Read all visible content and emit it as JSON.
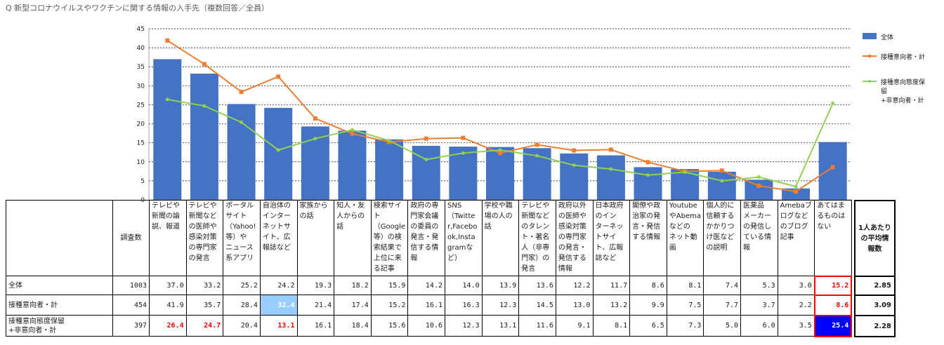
{
  "question": "Q 新型コロナウイルスやワクチンに関する情報の入手先（複数回答／全員）",
  "chart_data": {
    "type": "bar",
    "ylim": [
      0,
      45
    ],
    "yticks": [
      0,
      5,
      10,
      15,
      20,
      25,
      30,
      35,
      40,
      45
    ],
    "grid": true,
    "legend_position": "right",
    "categories": [
      "テレビや新聞の論説、報道",
      "テレビや新聞などの医師や感染対策の専門家の発言",
      "ポータルサイト（Yahoo!等）やニュース系アプリ",
      "自治体のインターネットサイト、広報誌など",
      "家族からの話",
      "知人・友人からの話",
      "検索サイト（Google等）の検索結果で上位に来る記事",
      "政府の専門家会議の委員の発言・発信する情報",
      "SNS（Twitter,Facebook,Instagramなど）",
      "学校や職場の人の話",
      "テレビや新聞などのタレント・著名人（非専門家）の発言",
      "政府以外の医師や感染対策の専門家の発言・発信する情報",
      "日本政府のインターネットサイト、広報誌など",
      "閣僚や政治家の発言・発信する情報",
      "YoutubeやAbemaなどのネット動画",
      "個人的に信頼するかかりつけ医などの説明",
      "医薬品メーカーの発信している情報",
      "Amebaブログなどのブログ記事",
      "あてはまるものはない"
    ],
    "series": [
      {
        "name": "全体",
        "kind": "bar",
        "color": "#4472c4",
        "values": [
          37.0,
          33.2,
          25.2,
          24.2,
          19.3,
          18.2,
          15.9,
          14.2,
          14.0,
          13.9,
          13.6,
          12.2,
          11.7,
          8.6,
          8.1,
          7.4,
          5.3,
          3.0,
          15.2
        ]
      },
      {
        "name": "接種意向者・計",
        "kind": "line",
        "color": "#ed7d31",
        "marker": "square",
        "values": [
          41.9,
          35.7,
          28.4,
          32.4,
          21.4,
          17.4,
          15.2,
          16.1,
          16.3,
          12.3,
          14.5,
          13.0,
          13.2,
          9.9,
          7.5,
          7.7,
          3.7,
          2.2,
          8.6
        ]
      },
      {
        "name": "接種意向態度保留+非意向者・計",
        "kind": "line",
        "color": "#92d050",
        "marker": "circle",
        "values": [
          26.4,
          24.7,
          20.4,
          13.1,
          16.1,
          18.4,
          15.6,
          10.6,
          12.3,
          13.1,
          11.6,
          9.1,
          8.1,
          6.5,
          7.3,
          5.0,
          6.0,
          3.5,
          25.4
        ]
      }
    ]
  },
  "legend": {
    "total": "全体",
    "intend": "接種意向者・計",
    "hold_line1": "接種意向態度保",
    "hold_line2": "留",
    "hold_line3": "+非意向者・計"
  },
  "table": {
    "count_header": "調査数",
    "headers": [
      "テレビや\n新聞の論\n説、報道",
      "テレビや\n新聞など\nの医師や\n感染対策\nの専門家\nの発言",
      "ポータル\nサイト\n（Yahoo!\n等）や\nニュース\n系アプリ",
      "自治体の\nインター\nネットサ\nイト、広\n報誌など",
      "家族から\nの話",
      "知人・友\n人からの\n話",
      "検索サイ\nト\n（Google\n等）の検\n索結果で\n上位に来\nる記事",
      "政府の専\n門家会議\nの委員の\n発言・発\n信する情\n報",
      "SNS\n（Twitte\nr,Facebo\nok,Insta\ngramな\nど）",
      "学校や職\n場の人の\n話",
      "テレビや\n新聞など\nのタレン\nト・著名\n人（非専\n門家）の\n発言",
      "政府以外\nの医師や\n感染対策\nの専門家\nの発言・\n発信する\n情報",
      "日本政府\nのイン\nターネッ\nトサイ\nト、広報\n誌など",
      "閣僚や政\n治家の発\n言・発信\nする情報",
      "Youtube\nやAbema\nなどの\nネット動\n画",
      "個人的に\n信頼する\nかかりつ\nけ医など\nの説明",
      "医薬品\nメーカー\nの発信し\nている情\n報",
      "Amebaブ\nログなど\nのブログ\n記事",
      "あてはま\nるものは\nない"
    ],
    "rows": [
      {
        "label": "全体",
        "count": "1003",
        "values": [
          "37.0",
          "33.2",
          "25.2",
          "24.2",
          "19.3",
          "18.2",
          "15.9",
          "14.2",
          "14.0",
          "13.9",
          "13.6",
          "12.2",
          "11.7",
          "8.6",
          "8.1",
          "7.4",
          "5.3",
          "3.0",
          "15.2"
        ],
        "avg": "2.85"
      },
      {
        "label": "接種意向者・計",
        "count": "454",
        "values": [
          "41.9",
          "35.7",
          "28.4",
          "32.4",
          "21.4",
          "17.4",
          "15.2",
          "16.1",
          "16.3",
          "12.3",
          "14.5",
          "13.0",
          "13.2",
          "9.9",
          "7.5",
          "7.7",
          "3.7",
          "2.2",
          "8.6"
        ],
        "avg": "3.09"
      },
      {
        "label": "接種意向態度保留\n+非意向者・計",
        "count": "397",
        "values": [
          "26.4",
          "24.7",
          "20.4",
          "13.1",
          "16.1",
          "18.4",
          "15.6",
          "10.6",
          "12.3",
          "13.1",
          "11.6",
          "9.1",
          "8.1",
          "6.5",
          "7.3",
          "5.0",
          "6.0",
          "3.5",
          "25.4"
        ],
        "avg": "2.28"
      }
    ],
    "avg_header": "1人あたり\nの平均情\n報数",
    "highlight_color_light": "#99ccff",
    "highlight_color_dark": "#0000ff",
    "highlight_text_color": "#ff0000"
  }
}
